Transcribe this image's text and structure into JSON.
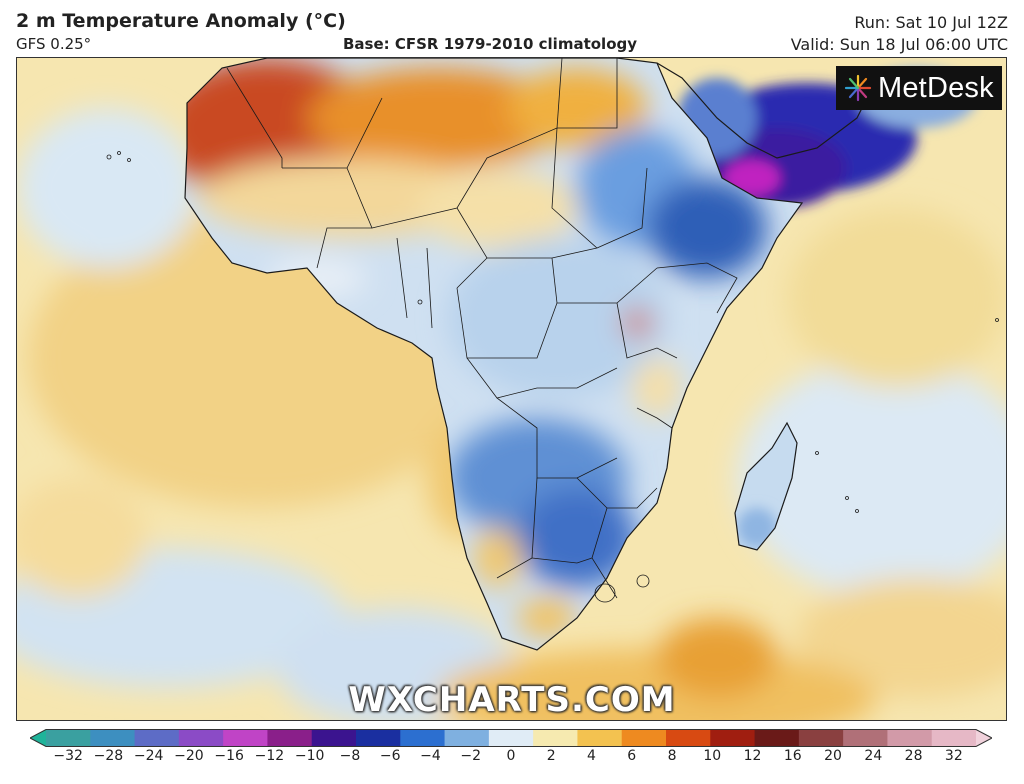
{
  "header": {
    "title": "2 m Temperature Anomaly (°C)",
    "model": "GFS 0.25°",
    "base": "Base: CFSR 1979-2010 climatology",
    "run": "Run: Sat 10 Jul 12Z",
    "valid": "Valid: Sun 18 Jul 06:00 UTC"
  },
  "logo": {
    "text": "MetDesk",
    "icon": "starburst-icon"
  },
  "watermark": "WXCHARTS.COM",
  "map": {
    "region": "Africa",
    "field": "temperature-anomaly",
    "colors": {
      "ocean_warm": "#f5e3a2",
      "ocean_cool": "#d6e6f2",
      "hot": "#c0391b",
      "warm": "#f0a830",
      "cool": "#7aaedc",
      "cold": "#2e5fb7",
      "very_cold": "#3a1aa0",
      "extreme_cold": "#c020c0"
    }
  },
  "colorbar": {
    "ticks": [
      "−32",
      "−28",
      "−24",
      "−20",
      "−16",
      "−12",
      "−10",
      "−8",
      "−6",
      "−4",
      "−2",
      "0",
      "2",
      "4",
      "6",
      "8",
      "10",
      "12",
      "16",
      "20",
      "24",
      "28",
      "32"
    ],
    "colors": [
      "#1fb49a",
      "#3aa0a0",
      "#3d8fc0",
      "#5d6cc6",
      "#8b4bc6",
      "#c044c6",
      "#8a1f8a",
      "#3b148f",
      "#1a2fa0",
      "#2c6fd0",
      "#7fb0e0",
      "#e0ecf6",
      "#f6eab0",
      "#f3c250",
      "#ee8a20",
      "#d84a12",
      "#a01e10",
      "#6a1a18",
      "#8a4040",
      "#b07078",
      "#d29aa8",
      "#e6b8c6",
      "#f1d2dc"
    ]
  }
}
